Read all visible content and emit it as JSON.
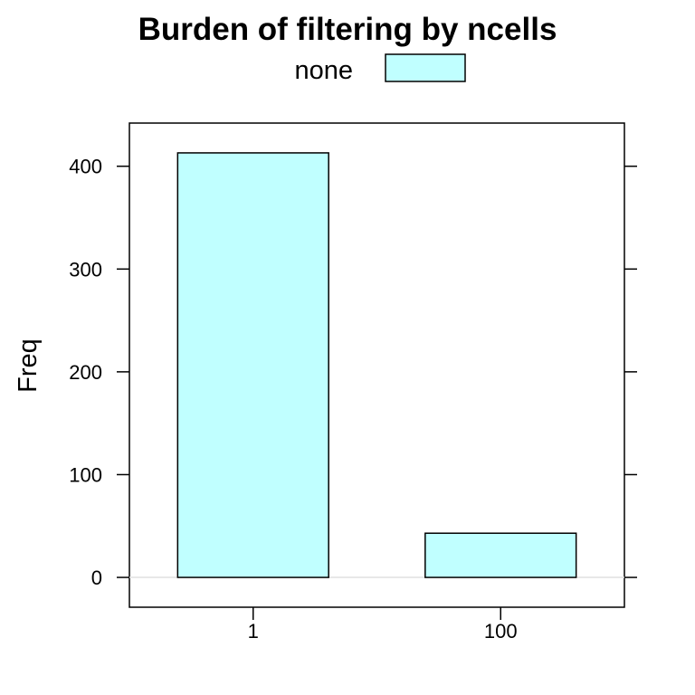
{
  "chart_data": {
    "type": "bar",
    "title": "Burden of filtering by ncells",
    "xlabel": "",
    "ylabel": "Freq",
    "categories": [
      "1",
      "100"
    ],
    "series": [
      {
        "name": "none",
        "values": [
          413,
          43
        ]
      }
    ],
    "ylim": [
      -29,
      442
    ],
    "yticks": [
      0,
      100,
      200,
      300,
      400
    ],
    "legend_position": "top",
    "grid": false,
    "colors": {
      "bar_fill": "#c0ffff",
      "bar_stroke": "#000000",
      "zero_line": "#e0e0e0"
    }
  }
}
